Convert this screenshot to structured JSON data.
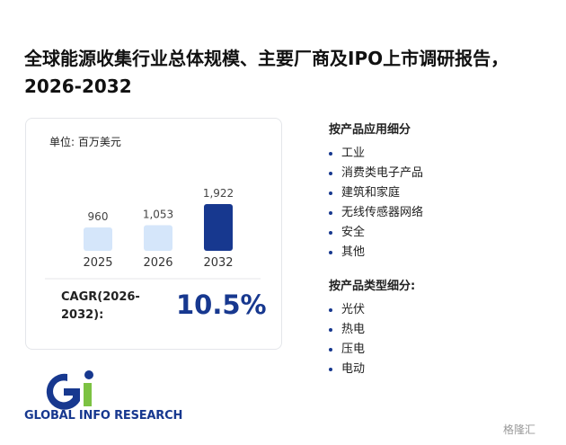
{
  "title": "全球能源收集行业总体规模、主要厂商及IPO上市调研报告，2026-2032",
  "chart_data": {
    "type": "bar",
    "unit_label": "单位: 百万美元",
    "categories": [
      "2025",
      "2026",
      "2032"
    ],
    "values": [
      960,
      1053,
      1922
    ],
    "value_labels": [
      "960",
      "1,053",
      "1,922"
    ],
    "colors": [
      "#d5e6fa",
      "#d5e6fa",
      "#17388f"
    ]
  },
  "cagr": {
    "label": "CAGR(2026-2032):",
    "value": "10.5%"
  },
  "segments": [
    {
      "heading": "按产品应用细分",
      "items": [
        "工业",
        "消费类电子产品",
        "建筑和家庭",
        "无线传感器网络",
        "安全",
        "其他"
      ]
    },
    {
      "heading": "按产品类型细分:",
      "items": [
        "光伏",
        "热电",
        "压电",
        "电动"
      ]
    }
  ],
  "logo": "GLOBAL INFO RESEARCH",
  "watermark": "格隆汇"
}
